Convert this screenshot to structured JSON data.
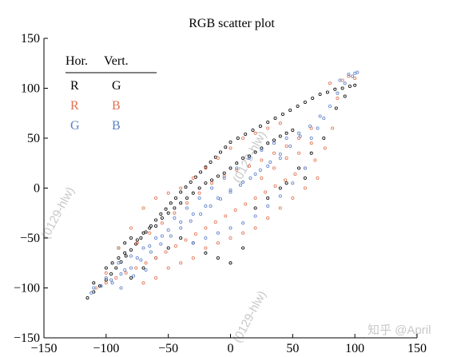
{
  "chart_data": {
    "type": "scatter",
    "title": "RGB scatter plot",
    "xlabel": "",
    "ylabel": "",
    "xlim": [
      -150,
      150
    ],
    "ylim": [
      -150,
      150
    ],
    "xticks": [
      "−150",
      "−100",
      "−50",
      "0",
      "50",
      "100",
      "150"
    ],
    "yticks": [
      "−150",
      "−100",
      "−50",
      "0",
      "50",
      "100",
      "150"
    ],
    "xtick_values": [
      -150,
      -100,
      -50,
      0,
      50,
      100,
      150
    ],
    "ytick_values": [
      -150,
      -100,
      -50,
      0,
      50,
      100,
      150
    ],
    "grid": false,
    "legend": {
      "placement": "top-left",
      "header_hor": "Hor.",
      "header_vert": "Vert.",
      "rows": [
        {
          "hor": "R",
          "vert": "G",
          "hor_color": "#000000",
          "vert_color": "#000000"
        },
        {
          "hor": "R",
          "vert": "B",
          "hor_color": "#e07050",
          "vert_color": "#e07050"
        },
        {
          "hor": "G",
          "vert": "B",
          "hor_color": "#5a7fc8",
          "vert_color": "#5a7fc8"
        }
      ]
    },
    "series": [
      {
        "name": "R vs G",
        "color": "#000000",
        "marker": "open-circle",
        "points": [
          [
            -115,
            -110
          ],
          [
            -110,
            -104
          ],
          [
            -105,
            -98
          ],
          [
            -100,
            -92
          ],
          [
            -96,
            -86
          ],
          [
            -92,
            -80
          ],
          [
            -88,
            -74
          ],
          [
            -84,
            -68
          ],
          [
            -80,
            -62
          ],
          [
            -76,
            -56
          ],
          [
            -72,
            -50
          ],
          [
            -68,
            -44
          ],
          [
            -64,
            -38
          ],
          [
            -60,
            -32
          ],
          [
            -56,
            -26
          ],
          [
            -52,
            -21
          ],
          [
            -48,
            -15
          ],
          [
            -44,
            -10
          ],
          [
            -40,
            -4
          ],
          [
            -36,
            1
          ],
          [
            -32,
            6
          ],
          [
            -28,
            11
          ],
          [
            -24,
            16
          ],
          [
            -20,
            21
          ],
          [
            -16,
            26
          ],
          [
            -12,
            31
          ],
          [
            -8,
            36
          ],
          [
            -4,
            41
          ],
          [
            0,
            46
          ],
          [
            6,
            50
          ],
          [
            12,
            54
          ],
          [
            18,
            58
          ],
          [
            24,
            62
          ],
          [
            30,
            66
          ],
          [
            36,
            70
          ],
          [
            42,
            74
          ],
          [
            48,
            78
          ],
          [
            54,
            82
          ],
          [
            60,
            86
          ],
          [
            66,
            90
          ],
          [
            72,
            94
          ],
          [
            78,
            96
          ],
          [
            84,
            99
          ],
          [
            90,
            100
          ],
          [
            96,
            102
          ],
          [
            100,
            103
          ],
          [
            -90,
            -60
          ],
          [
            -85,
            -55
          ],
          [
            -80,
            -50
          ],
          [
            -75,
            -52
          ],
          [
            -70,
            -45
          ],
          [
            -65,
            -40
          ],
          [
            -60,
            -38
          ],
          [
            -55,
            -30
          ],
          [
            -50,
            -25
          ],
          [
            -45,
            -20
          ],
          [
            -40,
            -15
          ],
          [
            -35,
            -10
          ],
          [
            -30,
            -5
          ],
          [
            -25,
            0
          ],
          [
            -20,
            5
          ],
          [
            -15,
            8
          ],
          [
            -10,
            12
          ],
          [
            -5,
            15
          ],
          [
            0,
            20
          ],
          [
            5,
            25
          ],
          [
            10,
            30
          ],
          [
            15,
            32
          ],
          [
            20,
            36
          ],
          [
            25,
            40
          ],
          [
            30,
            45
          ],
          [
            35,
            48
          ],
          [
            40,
            52
          ],
          [
            45,
            55
          ],
          [
            50,
            58
          ],
          [
            -100,
            -80
          ],
          [
            -95,
            -75
          ],
          [
            -90,
            -70
          ],
          [
            -85,
            -65
          ],
          [
            -110,
            -95
          ],
          [
            -60,
            -70
          ],
          [
            -50,
            -60
          ],
          [
            -40,
            -50
          ],
          [
            -30,
            -55
          ],
          [
            -20,
            -65
          ],
          [
            -10,
            -70
          ],
          [
            0,
            -75
          ],
          [
            -70,
            -80
          ],
          [
            -80,
            -90
          ],
          [
            10,
            -60
          ],
          [
            20,
            -20
          ],
          [
            30,
            -10
          ],
          [
            40,
            0
          ],
          [
            55,
            20
          ],
          [
            65,
            35
          ],
          [
            75,
            50
          ],
          [
            60,
            10
          ],
          [
            45,
            5
          ],
          [
            85,
            80
          ],
          [
            92,
            92
          ]
        ]
      },
      {
        "name": "R vs B",
        "color": "#e07050",
        "marker": "open-circle",
        "points": [
          [
            -108,
            -100
          ],
          [
            -100,
            -95
          ],
          [
            -92,
            -90
          ],
          [
            -84,
            -85
          ],
          [
            -76,
            -80
          ],
          [
            -68,
            -75
          ],
          [
            -60,
            -70
          ],
          [
            -52,
            -64
          ],
          [
            -44,
            -58
          ],
          [
            -36,
            -52
          ],
          [
            -28,
            -46
          ],
          [
            -20,
            -40
          ],
          [
            -12,
            -34
          ],
          [
            -4,
            -28
          ],
          [
            4,
            -22
          ],
          [
            12,
            -16
          ],
          [
            20,
            -10
          ],
          [
            28,
            -4
          ],
          [
            36,
            2
          ],
          [
            44,
            8
          ],
          [
            52,
            14
          ],
          [
            60,
            20
          ],
          [
            68,
            28
          ],
          [
            76,
            40
          ],
          [
            82,
            60
          ],
          [
            86,
            90
          ],
          [
            90,
            108
          ],
          [
            95,
            112
          ],
          [
            100,
            110
          ],
          [
            80,
            105
          ],
          [
            -80,
            -40
          ],
          [
            -70,
            -20
          ],
          [
            -60,
            -10
          ],
          [
            -50,
            -5
          ],
          [
            -40,
            0
          ],
          [
            -30,
            10
          ],
          [
            -20,
            20
          ],
          [
            -10,
            30
          ],
          [
            0,
            40
          ],
          [
            10,
            50
          ],
          [
            20,
            55
          ],
          [
            30,
            60
          ],
          [
            40,
            65
          ],
          [
            -90,
            -60
          ],
          [
            -75,
            -55
          ],
          [
            -65,
            -45
          ],
          [
            -55,
            -35
          ],
          [
            -45,
            -25
          ],
          [
            -35,
            -15
          ],
          [
            -25,
            -5
          ],
          [
            -15,
            5
          ],
          [
            -5,
            12
          ],
          [
            5,
            18
          ],
          [
            15,
            22
          ],
          [
            25,
            28
          ],
          [
            35,
            35
          ],
          [
            45,
            42
          ],
          [
            55,
            50
          ],
          [
            65,
            60
          ],
          [
            -100,
            -85
          ],
          [
            -20,
            -60
          ],
          [
            -10,
            -55
          ],
          [
            0,
            -50
          ],
          [
            10,
            -45
          ],
          [
            20,
            -40
          ],
          [
            30,
            -30
          ],
          [
            40,
            -20
          ],
          [
            50,
            -10
          ],
          [
            60,
            0
          ],
          [
            70,
            10
          ],
          [
            -50,
            -80
          ],
          [
            -40,
            -75
          ],
          [
            -30,
            -70
          ],
          [
            -60,
            -90
          ],
          [
            -70,
            -95
          ],
          [
            25,
            10
          ],
          [
            35,
            20
          ],
          [
            45,
            30
          ],
          [
            55,
            35
          ],
          [
            65,
            45
          ]
        ]
      },
      {
        "name": "G vs B",
        "color": "#5a7fc8",
        "marker": "open-circle",
        "points": [
          [
            -112,
            -105
          ],
          [
            -104,
            -98
          ],
          [
            -96,
            -92
          ],
          [
            -88,
            -86
          ],
          [
            -80,
            -80
          ],
          [
            -72,
            -72
          ],
          [
            -64,
            -64
          ],
          [
            -56,
            -56
          ],
          [
            -48,
            -48
          ],
          [
            -40,
            -40
          ],
          [
            -32,
            -33
          ],
          [
            -24,
            -26
          ],
          [
            -16,
            -18
          ],
          [
            -8,
            -11
          ],
          [
            0,
            -4
          ],
          [
            8,
            3
          ],
          [
            16,
            10
          ],
          [
            24,
            18
          ],
          [
            32,
            26
          ],
          [
            40,
            34
          ],
          [
            48,
            42
          ],
          [
            56,
            52
          ],
          [
            64,
            62
          ],
          [
            72,
            72
          ],
          [
            80,
            82
          ],
          [
            86,
            95
          ],
          [
            92,
            105
          ],
          [
            98,
            112
          ],
          [
            102,
            116
          ],
          [
            88,
            108
          ],
          [
            -90,
            -75
          ],
          [
            -80,
            -68
          ],
          [
            -70,
            -60
          ],
          [
            -60,
            -50
          ],
          [
            -50,
            -42
          ],
          [
            -40,
            -34
          ],
          [
            -30,
            -26
          ],
          [
            -20,
            -18
          ],
          [
            -10,
            -10
          ],
          [
            0,
            -2
          ],
          [
            10,
            6
          ],
          [
            20,
            14
          ],
          [
            30,
            22
          ],
          [
            40,
            30
          ],
          [
            -100,
            -90
          ],
          [
            -85,
            -82
          ],
          [
            -75,
            -70
          ],
          [
            -65,
            -58
          ],
          [
            -55,
            -48
          ],
          [
            -45,
            -30
          ],
          [
            -35,
            -20
          ],
          [
            -25,
            -10
          ],
          [
            -15,
            0
          ],
          [
            -5,
            10
          ],
          [
            5,
            20
          ],
          [
            15,
            30
          ],
          [
            25,
            38
          ],
          [
            35,
            45
          ],
          [
            45,
            50
          ],
          [
            55,
            55
          ],
          [
            -30,
            -55
          ],
          [
            -20,
            -50
          ],
          [
            -10,
            -45
          ],
          [
            0,
            -40
          ],
          [
            10,
            -35
          ],
          [
            20,
            -28
          ],
          [
            30,
            -18
          ],
          [
            40,
            -8
          ],
          [
            50,
            5
          ],
          [
            60,
            20
          ],
          [
            -110,
            -100
          ],
          [
            -95,
            -95
          ],
          [
            -88,
            -100
          ],
          [
            -78,
            -88
          ],
          [
            -68,
            -82
          ],
          [
            70,
            60
          ],
          [
            75,
            70
          ],
          [
            65,
            50
          ],
          [
            95,
            114
          ],
          [
            100,
            115
          ]
        ]
      }
    ],
    "watermarks": [
      "(0129-hlw)",
      "(0129-hlw)",
      "(0129-hlw)",
      "知乎 @April"
    ]
  }
}
